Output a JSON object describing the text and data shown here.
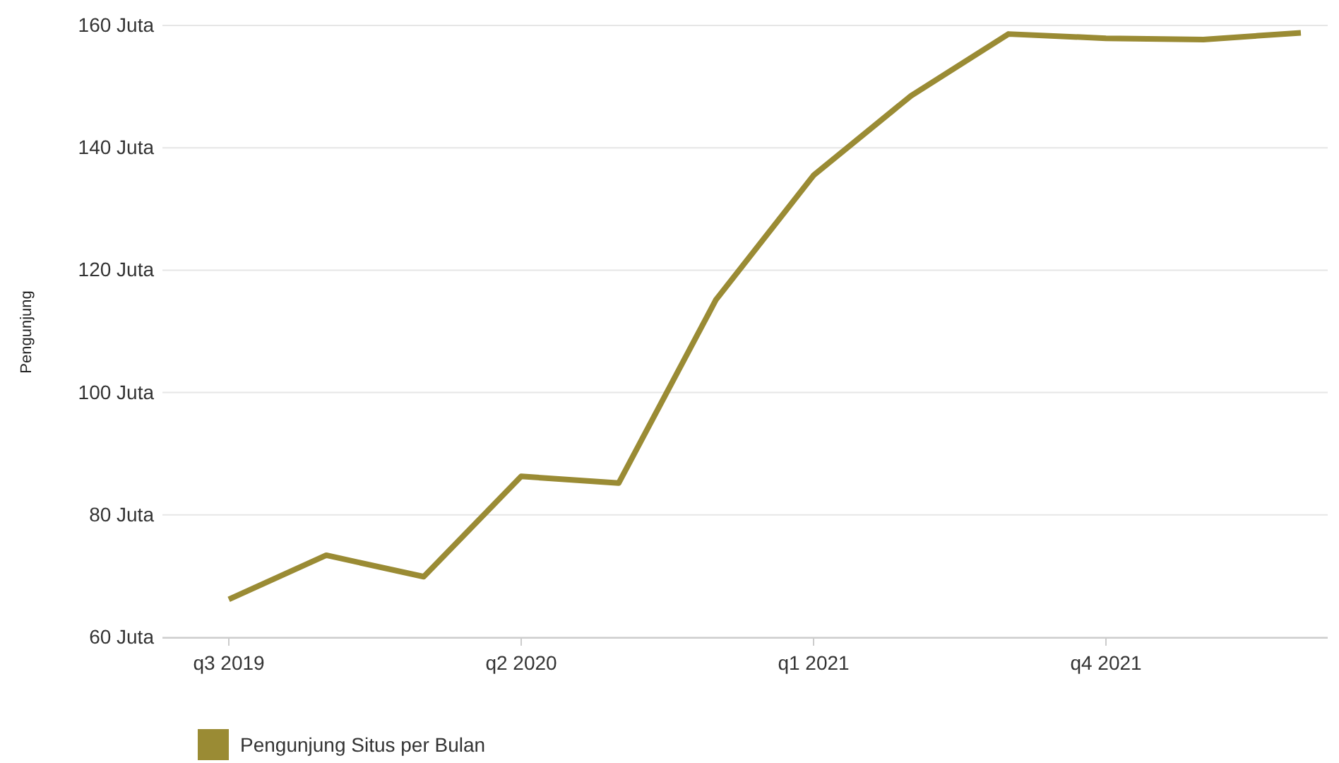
{
  "chart_data": {
    "type": "line",
    "ylabel": "Pengunjung",
    "categories": [
      "q3 2019",
      null,
      null,
      "q2 2020",
      null,
      null,
      "q1 2021",
      null,
      null,
      "q4 2021",
      null,
      null
    ],
    "series": [
      {
        "name": "Pengunjung Situs per Bulan",
        "color": "#9a8b34",
        "values": [
          66.2,
          73.4,
          69.9,
          86.3,
          85.2,
          115.2,
          135.5,
          148.5,
          158.6,
          157.9,
          157.7,
          158.8
        ]
      }
    ],
    "ylim": [
      60,
      160
    ],
    "yticks": [
      {
        "value": 60,
        "label": "60 Juta"
      },
      {
        "value": 80,
        "label": "80 Juta"
      },
      {
        "value": 100,
        "label": "100 Juta"
      },
      {
        "value": 120,
        "label": "120 Juta"
      },
      {
        "value": 140,
        "label": "140 Juta"
      },
      {
        "value": 160,
        "label": "160 Juta"
      }
    ],
    "grid": "y",
    "legend": "bottom left",
    "marker": "none",
    "line_style": "solid"
  }
}
